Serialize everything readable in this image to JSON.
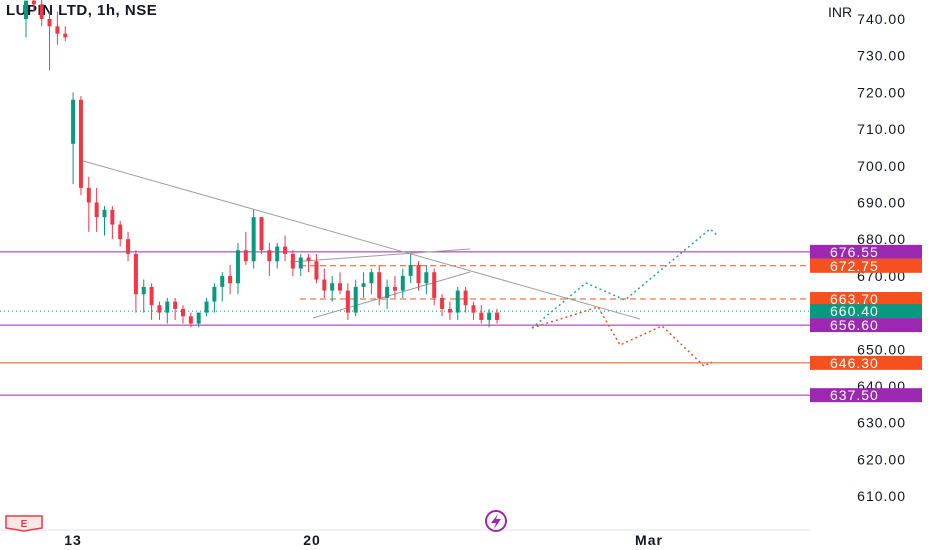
{
  "header": {
    "title": "LUPIN LTD, 1h, NSE",
    "currency": "INR"
  },
  "chart_data": {
    "type": "candlestick",
    "symbol": "LUPIN LTD",
    "interval": "1h",
    "exchange": "NSE",
    "currency": "INR",
    "y_ticks": [
      740,
      730,
      720,
      710,
      700,
      690,
      680,
      670,
      650,
      640,
      630,
      620,
      610
    ],
    "x_ticks": [
      "13",
      "20",
      "Mar"
    ],
    "ylim": [
      605,
      744
    ],
    "grid": false,
    "candles": [
      [
        740,
        745,
        735,
        745
      ],
      [
        745,
        748,
        742,
        744
      ],
      [
        744,
        748,
        738,
        740
      ],
      [
        740,
        742,
        726,
        738
      ],
      [
        738,
        742,
        733,
        736
      ],
      [
        736,
        738,
        734,
        735
      ],
      [
        706,
        720,
        695,
        718
      ],
      [
        718,
        719,
        692,
        694
      ],
      [
        694,
        697,
        682,
        690
      ],
      [
        690,
        694,
        682,
        686
      ],
      [
        686,
        689,
        681,
        688
      ],
      [
        688,
        689,
        680,
        684
      ],
      [
        684,
        685,
        678,
        680
      ],
      [
        680,
        682,
        674,
        676
      ],
      [
        676,
        677,
        660,
        665
      ],
      [
        665,
        669,
        660,
        667
      ],
      [
        667,
        668,
        658,
        662
      ],
      [
        662,
        663,
        658,
        660
      ],
      [
        660,
        664,
        657,
        663
      ],
      [
        663,
        664,
        658,
        661
      ],
      [
        661,
        662,
        657,
        659
      ],
      [
        659,
        660,
        656,
        657
      ],
      [
        657,
        660,
        656,
        660
      ],
      [
        660,
        664,
        659,
        663
      ],
      [
        663,
        668,
        660,
        667
      ],
      [
        667,
        671,
        663,
        670
      ],
      [
        670,
        673,
        665,
        668
      ],
      [
        668,
        679,
        665,
        677
      ],
      [
        677,
        682,
        673,
        674
      ],
      [
        674,
        688,
        672,
        686
      ],
      [
        686,
        686,
        676,
        677
      ],
      [
        677,
        679,
        670,
        674
      ],
      [
        674,
        679,
        672,
        678
      ],
      [
        678,
        681,
        674,
        676
      ],
      [
        676,
        677,
        670,
        672
      ],
      [
        672,
        676,
        670,
        675
      ],
      [
        675,
        676,
        671,
        674
      ],
      [
        674,
        676,
        668,
        669
      ],
      [
        669,
        672,
        664,
        666
      ],
      [
        666,
        670,
        663,
        668
      ],
      [
        668,
        671,
        665,
        666
      ],
      [
        666,
        668,
        658,
        660
      ],
      [
        660,
        669,
        659,
        667
      ],
      [
        667,
        671,
        664,
        668
      ],
      [
        668,
        672,
        665,
        671
      ],
      [
        671,
        673,
        662,
        664
      ],
      [
        664,
        669,
        661,
        667
      ],
      [
        667,
        670,
        664,
        666
      ],
      [
        666,
        672,
        664,
        670
      ],
      [
        670,
        676,
        668,
        673
      ],
      [
        673,
        674,
        666,
        668
      ],
      [
        668,
        673,
        665,
        671
      ],
      [
        671,
        672,
        662,
        664
      ],
      [
        664,
        665,
        659,
        661
      ],
      [
        661,
        663,
        658,
        660
      ],
      [
        660,
        667,
        658,
        666
      ],
      [
        666,
        667,
        660,
        662
      ],
      [
        662,
        663,
        658,
        660
      ],
      [
        660,
        662,
        657,
        658
      ],
      [
        658,
        661,
        656,
        660
      ],
      [
        660,
        661,
        657,
        658
      ]
    ],
    "price_levels": [
      {
        "price": 676.55,
        "label": "676.55",
        "line": "solid",
        "color": "#9c27b0"
      },
      {
        "price": 672.75,
        "label": "672.75",
        "line": "dashed",
        "color": "#f4511e"
      },
      {
        "price": 663.7,
        "label": "663.70",
        "line": "dashed",
        "color": "#f4511e"
      },
      {
        "price": 660.4,
        "label": "660.40",
        "line": "dotted",
        "color": "#089981"
      },
      {
        "price": 656.6,
        "label": "656.60",
        "line": "solid",
        "color": "#9c27b0"
      },
      {
        "price": 646.3,
        "label": "646.30",
        "line": "solid",
        "color": "#f4511e"
      },
      {
        "price": 637.5,
        "label": "637.50",
        "line": "solid",
        "color": "#9c27b0"
      }
    ],
    "colors": {
      "up": "#089981",
      "down": "#f23645",
      "trendline": "#9e9e9e",
      "bull_path": "#26a69a",
      "bear_path": "#f4511e"
    }
  }
}
